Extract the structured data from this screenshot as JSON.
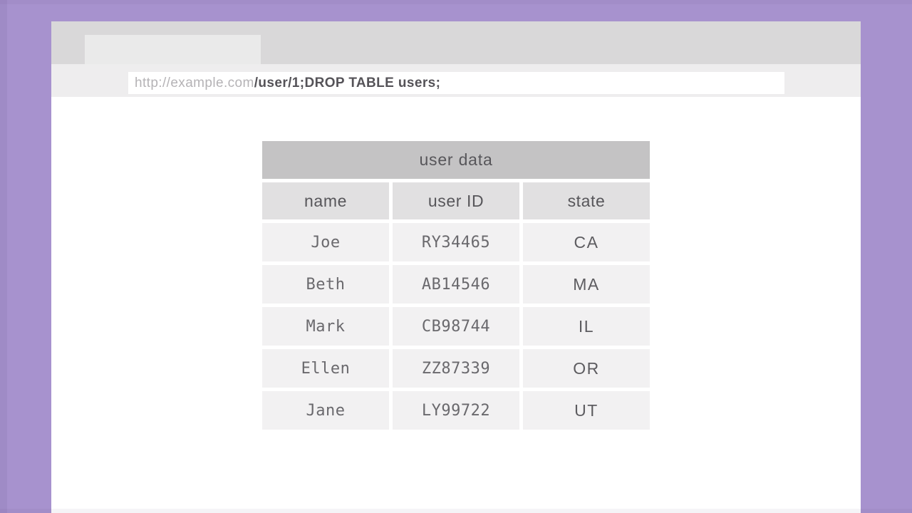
{
  "browser": {
    "url_bar": {
      "base_url": "http://example.com",
      "injection": "/user/1;DROP TABLE users;"
    }
  },
  "table": {
    "title": "user data",
    "columns": [
      "name",
      "user ID",
      "state"
    ],
    "rows": [
      {
        "name": "Joe",
        "user_id": "RY34465",
        "state": "CA"
      },
      {
        "name": "Beth",
        "user_id": "AB14546",
        "state": "MA"
      },
      {
        "name": "Mark",
        "user_id": "CB98744",
        "state": "IL"
      },
      {
        "name": "Ellen",
        "user_id": "ZZ87339",
        "state": "OR"
      },
      {
        "name": "Jane",
        "user_id": "LY99722",
        "state": "UT"
      }
    ]
  },
  "colors": {
    "background_purple": "#a792ce",
    "chrome_bar": "#d9d8d9",
    "tab": "#eaeaea",
    "url_row": "#eeedee",
    "url_base_text": "#b5b3b6",
    "url_injection_text": "#555358",
    "table_title_bg": "#c4c3c4",
    "table_header_bg": "#e1e0e1",
    "table_cell_bg": "#f2f1f2",
    "table_text": "#57565a"
  }
}
